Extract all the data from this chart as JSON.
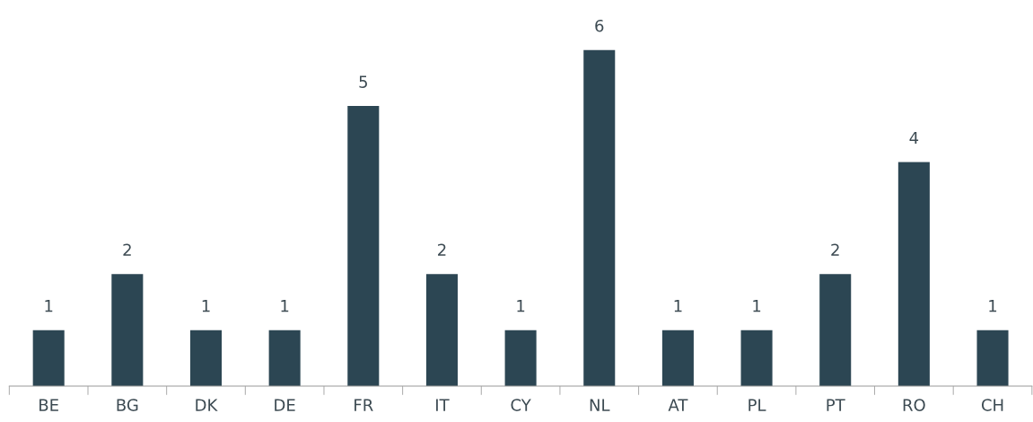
{
  "chart_data": {
    "type": "bar",
    "categories": [
      "BE",
      "BG",
      "DK",
      "DE",
      "FR",
      "IT",
      "CY",
      "NL",
      "AT",
      "PL",
      "PT",
      "RO",
      "CH"
    ],
    "values": [
      1,
      2,
      1,
      1,
      5,
      2,
      1,
      6,
      1,
      1,
      2,
      4,
      1
    ],
    "color": "#2c4653",
    "data_labels": true,
    "grid": false,
    "legend": false,
    "tick_labels": "x"
  }
}
